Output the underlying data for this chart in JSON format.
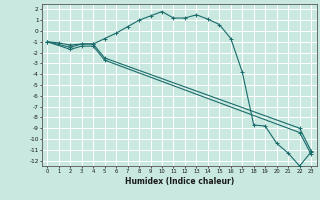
{
  "xlabel": "Humidex (Indice chaleur)",
  "background_color": "#c8e8e0",
  "grid_color": "#ffffff",
  "line_color": "#1a6b6b",
  "xlim": [
    -0.5,
    23.5
  ],
  "ylim": [
    -12.5,
    2.5
  ],
  "xticks": [
    0,
    1,
    2,
    3,
    4,
    5,
    6,
    7,
    8,
    9,
    10,
    11,
    12,
    13,
    14,
    15,
    16,
    17,
    18,
    19,
    20,
    21,
    22,
    23
  ],
  "yticks": [
    2,
    1,
    0,
    -1,
    -2,
    -3,
    -4,
    -5,
    -6,
    -7,
    -8,
    -9,
    -10,
    -11,
    -12
  ],
  "line1_x": [
    0,
    1,
    2,
    3,
    4,
    5,
    6,
    7,
    8,
    9,
    10,
    11,
    12,
    13,
    14,
    15,
    16,
    17,
    18,
    19,
    20,
    21,
    22,
    23
  ],
  "line1_y": [
    -1,
    -1.1,
    -1.3,
    -1.2,
    -1.2,
    -0.7,
    -0.2,
    0.4,
    1.0,
    1.4,
    1.8,
    1.2,
    1.2,
    1.5,
    1.1,
    0.6,
    -0.7,
    -3.8,
    -8.7,
    -8.8,
    -10.4,
    -11.3,
    -12.5,
    -11.2
  ],
  "line2_x": [
    0,
    2,
    3,
    4,
    5,
    22,
    23
  ],
  "line2_y": [
    -1,
    -1.5,
    -1.2,
    -1.2,
    -2.5,
    -9.0,
    -11.1
  ],
  "line3_x": [
    0,
    2,
    3,
    4,
    5,
    22,
    23
  ],
  "line3_y": [
    -1,
    -1.7,
    -1.4,
    -1.4,
    -2.7,
    -9.4,
    -11.4
  ]
}
